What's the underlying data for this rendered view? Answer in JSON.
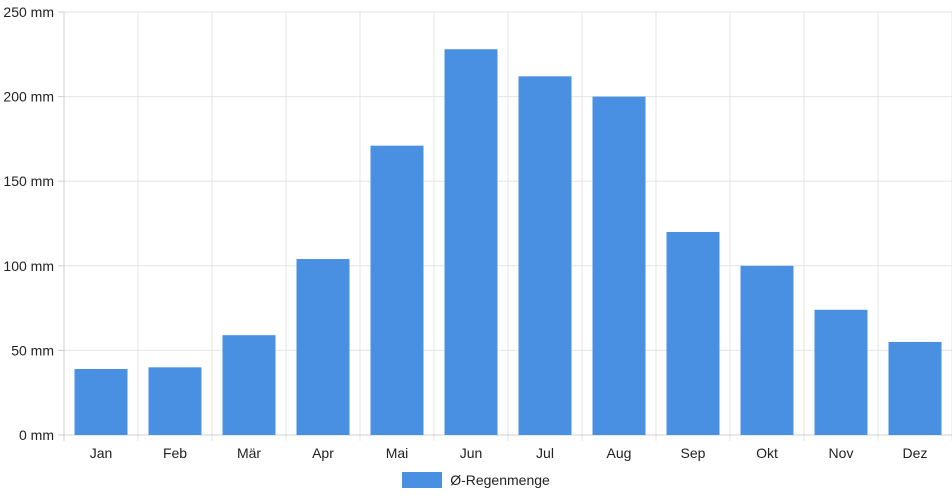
{
  "chart_data": {
    "type": "bar",
    "categories": [
      "Jan",
      "Feb",
      "Mär",
      "Apr",
      "Mai",
      "Jun",
      "Jul",
      "Aug",
      "Sep",
      "Okt",
      "Nov",
      "Dez"
    ],
    "series": [
      {
        "name": "Ø-Regenmenge",
        "values": [
          39,
          40,
          59,
          104,
          171,
          228,
          212,
          200,
          120,
          100,
          74,
          55
        ]
      }
    ],
    "ylim": [
      0,
      250
    ],
    "yticks": [
      0,
      50,
      100,
      150,
      200,
      250
    ],
    "y_tick_suffix": " mm",
    "grid": true,
    "legend_position": "bottom-center",
    "colors": {
      "bar": "#4a90e2",
      "grid": "#e4e4e4",
      "axis": "#d0d0d0"
    }
  }
}
